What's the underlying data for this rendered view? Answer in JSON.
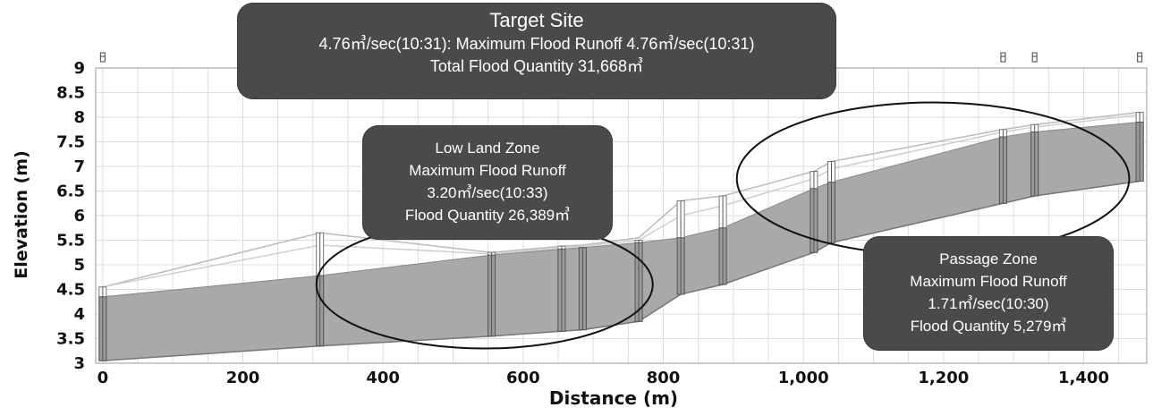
{
  "chart_data": {
    "type": "area",
    "xlabel": "Distance (m)",
    "ylabel": "Elevation (m)",
    "xlim": [
      -10,
      1490
    ],
    "ylim": [
      3,
      9
    ],
    "xticks": [
      0,
      200,
      400,
      600,
      800,
      1000,
      1200,
      1400
    ],
    "xtick_labels": [
      "0",
      "200",
      "400",
      "600",
      "800",
      "1,000",
      "1,200",
      "1,400"
    ],
    "yticks": [
      3,
      3.5,
      4,
      4.5,
      5,
      5.5,
      6,
      6.5,
      7,
      7.5,
      8,
      8.5,
      9
    ],
    "ytick_labels": [
      "3",
      "3.5",
      "4",
      "4.5",
      "5",
      "5.5",
      "6",
      "6.5",
      "7",
      "7.5",
      "8",
      "8.5",
      "9"
    ],
    "grid": true,
    "channel_bed": {
      "x": [
        0,
        310,
        555,
        655,
        685,
        765,
        825,
        885,
        1015,
        1040,
        1285,
        1330,
        1480
      ],
      "y": [
        3.05,
        3.35,
        3.55,
        3.65,
        3.68,
        3.85,
        4.4,
        4.6,
        5.25,
        5.45,
        6.25,
        6.4,
        6.7
      ]
    },
    "water_surface": {
      "x": [
        0,
        310,
        555,
        655,
        685,
        765,
        825,
        885,
        1015,
        1040,
        1285,
        1330,
        1480
      ],
      "y": [
        4.35,
        4.78,
        5.2,
        5.32,
        5.35,
        5.45,
        5.55,
        5.75,
        6.55,
        6.68,
        7.6,
        7.7,
        7.9
      ]
    },
    "bank_left": {
      "x": [
        0,
        310,
        555,
        655,
        685,
        765,
        825,
        885,
        1015,
        1040,
        1285,
        1330,
        1480
      ],
      "y": [
        4.55,
        5.65,
        5.25,
        5.38,
        5.4,
        5.55,
        6.3,
        6.4,
        6.9,
        7.1,
        7.75,
        7.85,
        8.1
      ]
    },
    "bank_right": {
      "x": [
        0,
        310,
        555,
        655,
        685,
        765,
        825,
        885,
        1015,
        1040,
        1285,
        1330,
        1480
      ],
      "y": [
        4.55,
        5.4,
        5.22,
        5.35,
        5.38,
        5.5,
        6.0,
        6.2,
        6.75,
        6.95,
        7.7,
        7.8,
        8.05
      ]
    },
    "structures": {
      "x": [
        0,
        310,
        555,
        655,
        685,
        765,
        825,
        885,
        1015,
        1040,
        1285,
        1330,
        1480
      ],
      "top": [
        4.55,
        5.65,
        5.25,
        5.38,
        5.35,
        5.5,
        6.3,
        6.4,
        6.9,
        7.1,
        7.75,
        7.85,
        8.1
      ],
      "bottom": [
        3.05,
        3.35,
        3.55,
        3.65,
        3.68,
        3.85,
        4.4,
        4.6,
        5.25,
        5.45,
        6.25,
        6.4,
        6.7
      ]
    },
    "top_markers_x": [
      0,
      1285,
      1330,
      1480
    ],
    "zones": [
      {
        "cx": 545,
        "cy": 4.6,
        "rx": 240,
        "ry": 1.3
      },
      {
        "cx": 1185,
        "cy": 6.75,
        "rx": 280,
        "ry": 1.55
      }
    ]
  },
  "annotations": {
    "target": {
      "title": "Target Site",
      "line2": "4.76㎥/sec(10:31): Maximum Flood Runoff 4.76㎥/sec(10:31)",
      "line3": "Total Flood Quantity 31,668㎥"
    },
    "low_land": {
      "title": "Low Land Zone",
      "line2": "Maximum Flood Runoff",
      "line3": "3.20㎥/sec(10:33)",
      "line4": "Flood Quantity 26,389㎥"
    },
    "passage": {
      "title": "Passage Zone",
      "line2": "Maximum Flood Runoff",
      "line3": "1.71㎥/sec(10:30)",
      "line4": "Flood Quantity 5,279㎥"
    }
  },
  "colors": {
    "water_fill": "#a9a9a9",
    "grid": "#dddddd",
    "bank_line": "#bbbbbb",
    "box_bg": "#4a4a4a"
  }
}
